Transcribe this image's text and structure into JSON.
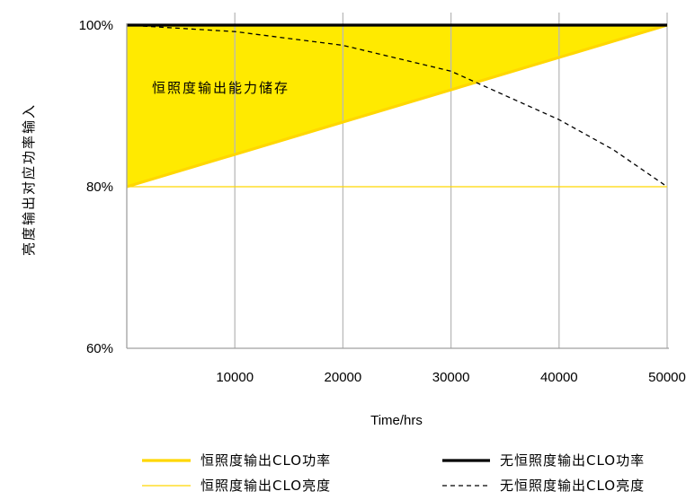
{
  "chart_data": {
    "type": "line",
    "title": "",
    "xlabel": "Time/hrs",
    "ylabel": "亮度输出对应功率输入",
    "xlim": [
      0,
      50000
    ],
    "ylim": [
      60,
      100
    ],
    "x_ticks": [
      {
        "value": 10000,
        "label": "10000"
      },
      {
        "value": 20000,
        "label": "20000"
      },
      {
        "value": 30000,
        "label": "30000"
      },
      {
        "value": 40000,
        "label": "40000"
      },
      {
        "value": 50000,
        "label": "50000"
      }
    ],
    "y_ticks": [
      {
        "value": 100,
        "label": "100%"
      },
      {
        "value": 80,
        "label": "80%"
      },
      {
        "value": 60,
        "label": "60%"
      }
    ],
    "grid": {
      "vertical": true,
      "horizontal": false
    },
    "legend_position": "bottom",
    "annotations": [
      {
        "text": "恒照度输出能力储存",
        "x": 2000,
        "y": 92.2
      }
    ],
    "series": [
      {
        "name": "恒照度输出CLO功率",
        "style": "solid-thick",
        "color": "#FFD700",
        "x": [
          0,
          50000
        ],
        "y": [
          80,
          100
        ]
      },
      {
        "name": "恒照度输出CLO亮度",
        "style": "solid-thin",
        "color": "#FFD700",
        "x": [
          0,
          50000
        ],
        "y": [
          80,
          80
        ]
      },
      {
        "name": "无恒照度输出CLO功率",
        "style": "solid-thick",
        "color": "#000000",
        "x": [
          0,
          50000
        ],
        "y": [
          100,
          100
        ]
      },
      {
        "name": "无恒照度输出CLO亮度",
        "style": "dashed",
        "color": "#000000",
        "x": [
          0,
          10000,
          20000,
          30000,
          40000,
          45000,
          50000
        ],
        "y": [
          100,
          99.2,
          97.5,
          94.3,
          88.3,
          84.6,
          80
        ]
      }
    ],
    "fill_region": {
      "description_label": "恒照度输出能力储存",
      "color": "#FFEA00"
    }
  }
}
